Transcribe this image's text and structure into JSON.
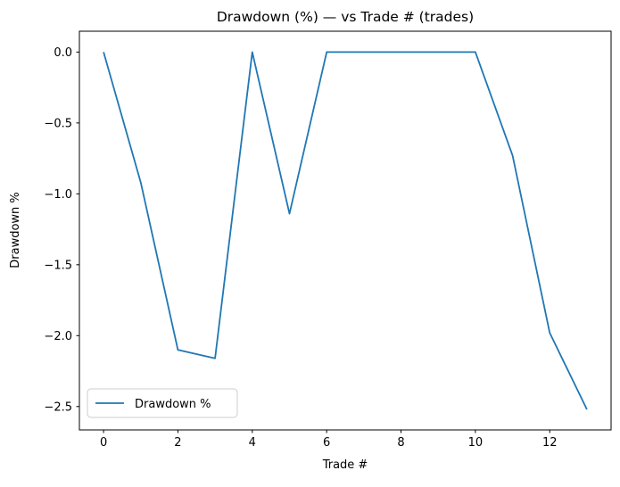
{
  "figure": {
    "background_color": "#ffffff",
    "spine_color": "#000000",
    "text_color": "#000000",
    "legend_border_color": "#cccccc"
  },
  "chart_data": {
    "type": "line",
    "title": "Drawdown (%) — vs Trade # (trades)",
    "xlabel": "Trade #",
    "ylabel": "Drawdown %",
    "series": [
      {
        "name": "Drawdown %",
        "color": "#1f77b4",
        "x": [
          0,
          1,
          2,
          3,
          4,
          5,
          6,
          7,
          8,
          9,
          10,
          11,
          12,
          13
        ],
        "y": [
          0.0,
          -0.92,
          -2.1,
          -2.16,
          0.0,
          -1.14,
          0.0,
          0.0,
          0.0,
          0.0,
          0.0,
          -0.73,
          -1.98,
          -2.52
        ]
      }
    ],
    "xticks": [
      0,
      2,
      4,
      6,
      8,
      10,
      12
    ],
    "xtick_labels": [
      "0",
      "2",
      "4",
      "6",
      "8",
      "10",
      "12"
    ],
    "yticks": [
      0.0,
      -0.5,
      -1.0,
      -1.5,
      -2.0,
      -2.5
    ],
    "ytick_labels": [
      "0.0",
      "−0.5",
      "−1.0",
      "−1.5",
      "−2.0",
      "−2.5"
    ],
    "xlim": [
      -0.65,
      13.65
    ],
    "ylim": [
      -2.665,
      0.147
    ],
    "grid": false,
    "legend": {
      "label": "Drawdown %",
      "position": "lower left"
    }
  }
}
